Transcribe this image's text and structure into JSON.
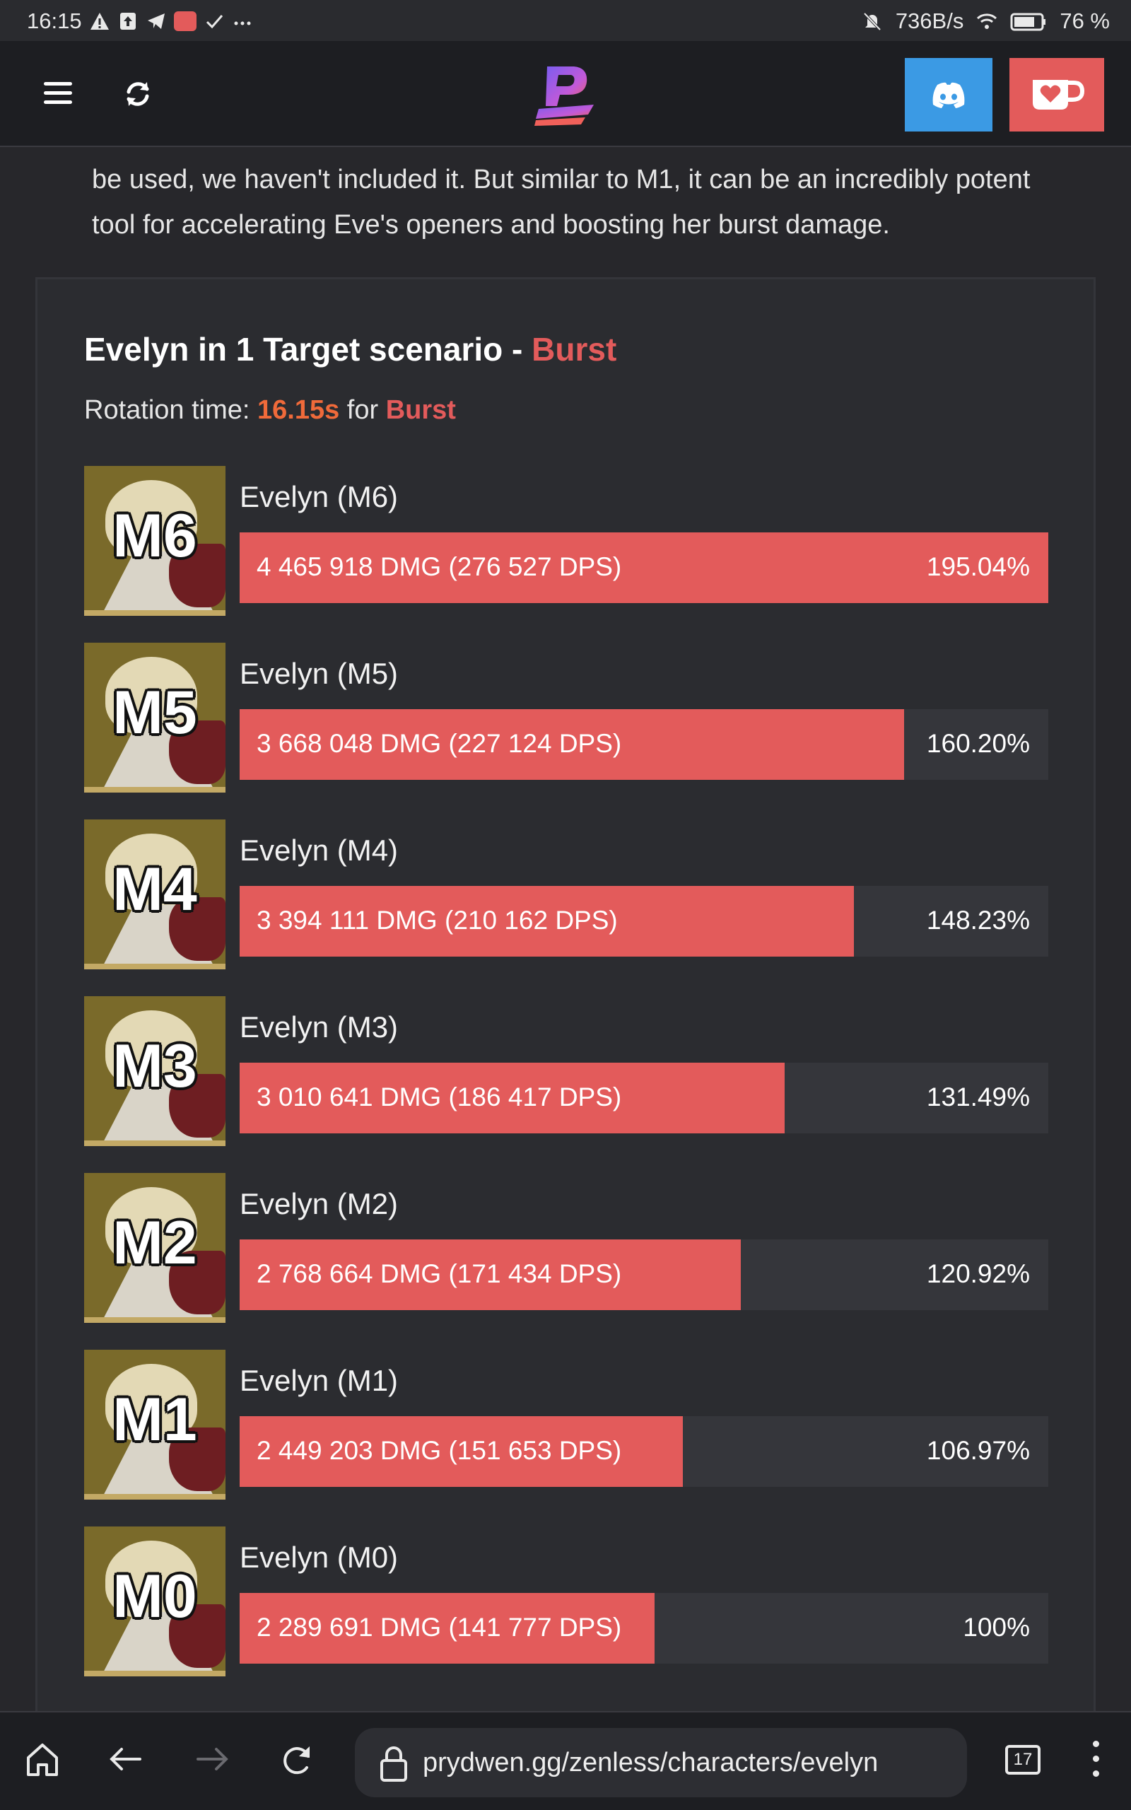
{
  "status_bar": {
    "time": "16:15",
    "net_speed": "736B/s",
    "battery": "76 %"
  },
  "header": {
    "menu_icon": "hamburger-icon",
    "refresh_icon": "refresh-icon",
    "logo_icon": "prydwen-logo",
    "discord_icon": "discord-icon",
    "kofi_icon": "kofi-cup-icon",
    "colors": {
      "discord": "#3b9ae4",
      "kofi": "#e35b5b"
    }
  },
  "intro": {
    "line1": "be used, we haven't included it. But similar to M1, it can be an incredibly potent",
    "line2": "tool for accelerating Eve's openers and boosting her burst damage."
  },
  "card": {
    "title_prefix": "Evelyn in 1 Target scenario - ",
    "title_accent": "Burst",
    "rotation_label": "Rotation time: ",
    "rotation_time": "16.15s",
    "rotation_for": " for ",
    "rotation_mode": "Burst"
  },
  "chart_data": {
    "type": "bar",
    "categories": [
      "M6",
      "M5",
      "M4",
      "M3",
      "M2",
      "M1",
      "M0"
    ],
    "rows": [
      {
        "badge": "M6",
        "name": "Evelyn (M6)",
        "text": "4 465 918 DMG (276 527 DPS)",
        "pct_label": "195.04%",
        "percent": 195.04,
        "dmg": 4465918,
        "dps": 276527
      },
      {
        "badge": "M5",
        "name": "Evelyn (M5)",
        "text": "3 668 048 DMG (227 124 DPS)",
        "pct_label": "160.20%",
        "percent": 160.2,
        "dmg": 3668048,
        "dps": 227124
      },
      {
        "badge": "M4",
        "name": "Evelyn (M4)",
        "text": "3 394 111 DMG (210 162 DPS)",
        "pct_label": "148.23%",
        "percent": 148.23,
        "dmg": 3394111,
        "dps": 210162
      },
      {
        "badge": "M3",
        "name": "Evelyn (M3)",
        "text": "3 010 641 DMG (186 417 DPS)",
        "pct_label": "131.49%",
        "percent": 131.49,
        "dmg": 3010641,
        "dps": 186417
      },
      {
        "badge": "M2",
        "name": "Evelyn (M2)",
        "text": "2 768 664 DMG (171 434 DPS)",
        "pct_label": "120.92%",
        "percent": 120.92,
        "dmg": 2768664,
        "dps": 171434
      },
      {
        "badge": "M1",
        "name": "Evelyn (M1)",
        "text": "2 449 203 DMG (151 653 DPS)",
        "pct_label": "106.97%",
        "percent": 106.97,
        "dmg": 2449203,
        "dps": 151653
      },
      {
        "badge": "M0",
        "name": "Evelyn (M0)",
        "text": "2 289 691 DMG (141 777 DPS)",
        "pct_label": "100%",
        "percent": 100,
        "dmg": 2289691,
        "dps": 141777
      }
    ],
    "colors": {
      "bar": "#e35b5b",
      "track": "#35363b"
    }
  },
  "browser_bar": {
    "url": "prydwen.gg/zenless/characters/evelyn",
    "tab_count": "17",
    "icons": [
      "home-icon",
      "back-arrow-icon",
      "forward-arrow-icon",
      "reload-icon",
      "lock-icon",
      "tabs-icon",
      "more-vert-icon"
    ]
  }
}
